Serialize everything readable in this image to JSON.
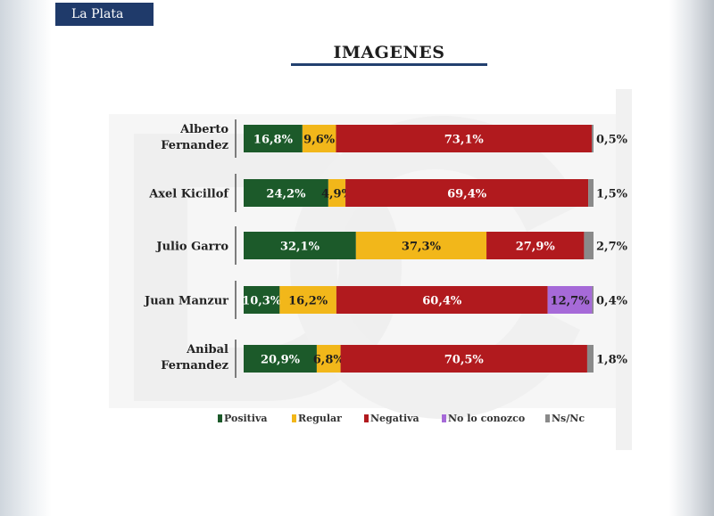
{
  "header": {
    "tag": "La Plata"
  },
  "title": "IMAGENES",
  "colors": {
    "Positiva": "#1c5a2a",
    "Regular": "#f2b71a",
    "Negativa": "#b11a1e",
    "No lo conozco": "#a66ad8",
    "Ns/Nc": "#8a8a8a"
  },
  "chart_data": {
    "type": "bar",
    "orientation": "horizontal",
    "stacked": true,
    "title": "IMAGENES",
    "categories": [
      [
        "Alberto",
        "Fernandez"
      ],
      [
        "Axel Kicillof"
      ],
      [
        "Julio Garro"
      ],
      [
        "Juan Manzur"
      ],
      [
        "Anibal",
        "Fernandez"
      ]
    ],
    "series": [
      {
        "name": "Positiva",
        "values": [
          16.8,
          24.2,
          32.1,
          10.3,
          20.9
        ],
        "labels": [
          "16,8%",
          "24,2%",
          "32,1%",
          "10,3%",
          "20,9%"
        ]
      },
      {
        "name": "Regular",
        "values": [
          9.6,
          4.9,
          37.3,
          16.2,
          6.8
        ],
        "labels": [
          "9,6%",
          "4,9%",
          "37,3%",
          "16,2%",
          "6,8%"
        ]
      },
      {
        "name": "Negativa",
        "values": [
          73.1,
          69.4,
          27.9,
          60.4,
          70.5
        ],
        "labels": [
          "73,1%",
          "69,4%",
          "27,9%",
          "60,4%",
          "70,5%"
        ]
      },
      {
        "name": "No lo conozco",
        "values": [
          0,
          0,
          0,
          12.7,
          0
        ],
        "labels": [
          "",
          "",
          "",
          "12,7%",
          ""
        ]
      },
      {
        "name": "Ns/Nc",
        "values": [
          0.5,
          1.5,
          2.7,
          0.4,
          1.8
        ],
        "labels": [
          "0,5%",
          "1,5%",
          "2,7%",
          "0,4%",
          "1,8%"
        ]
      }
    ],
    "legend": [
      "Positiva",
      "Regular",
      "Negativa",
      "No lo conozco",
      "Ns/Nc"
    ],
    "legend_position": "bottom",
    "xlim": [
      0,
      100
    ]
  }
}
